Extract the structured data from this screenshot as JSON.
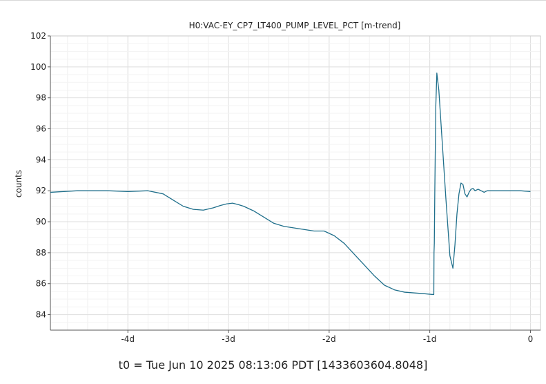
{
  "chart_data": {
    "type": "line",
    "title": "H0:VAC-EY_CP7_LT400_PUMP_LEVEL_PCT [m-trend]",
    "xlabel": "",
    "ylabel": "counts",
    "footer": "t0 = Tue Jun 10 2025 08:13:06 PDT [1433603604.8048]",
    "x_unit": "days",
    "xlim": [
      -4.77,
      0.1
    ],
    "ylim": [
      83,
      102
    ],
    "grid": true,
    "x_ticks": [
      {
        "value": -4,
        "label": "-4d"
      },
      {
        "value": -3,
        "label": "-3d"
      },
      {
        "value": -2,
        "label": "-2d"
      },
      {
        "value": -1,
        "label": "-1d"
      },
      {
        "value": 0,
        "label": "0"
      }
    ],
    "y_ticks": [
      84,
      86,
      88,
      90,
      92,
      94,
      96,
      98,
      100,
      102
    ],
    "series": [
      {
        "name": "",
        "color": "#1f6f8b",
        "x": [
          -4.77,
          -4.5,
          -4.2,
          -4.0,
          -3.8,
          -3.65,
          -3.55,
          -3.45,
          -3.35,
          -3.25,
          -3.15,
          -3.08,
          -3.02,
          -2.96,
          -2.9,
          -2.85,
          -2.75,
          -2.65,
          -2.55,
          -2.45,
          -2.35,
          -2.25,
          -2.15,
          -2.05,
          -1.95,
          -1.85,
          -1.75,
          -1.65,
          -1.55,
          -1.45,
          -1.35,
          -1.25,
          -1.15,
          -1.05,
          -0.97,
          -0.96,
          -0.958,
          -0.955,
          -0.95,
          -0.94,
          -0.93,
          -0.91,
          -0.88,
          -0.84,
          -0.8,
          -0.77,
          -0.75,
          -0.73,
          -0.71,
          -0.69,
          -0.67,
          -0.65,
          -0.63,
          -0.61,
          -0.59,
          -0.57,
          -0.55,
          -0.52,
          -0.49,
          -0.46,
          -0.43,
          -0.4,
          -0.35,
          -0.3,
          -0.2,
          -0.1,
          0.0
        ],
        "y": [
          91.9,
          92.0,
          92.0,
          91.95,
          92.0,
          91.8,
          91.4,
          91.0,
          90.8,
          90.75,
          90.9,
          91.05,
          91.15,
          91.2,
          91.1,
          91.0,
          90.7,
          90.3,
          89.9,
          89.7,
          89.6,
          89.5,
          89.4,
          89.4,
          89.1,
          88.6,
          87.9,
          87.2,
          86.5,
          85.9,
          85.6,
          85.45,
          85.4,
          85.35,
          85.3,
          85.3,
          88.0,
          88.6,
          92.0,
          97.5,
          99.6,
          98.5,
          95.5,
          91.5,
          87.8,
          87.0,
          88.5,
          90.5,
          91.8,
          92.5,
          92.4,
          91.8,
          91.6,
          91.9,
          92.1,
          92.15,
          92.0,
          92.1,
          92.0,
          91.9,
          92.0,
          92.0,
          92.0,
          92.0,
          92.0,
          92.0,
          91.95
        ]
      }
    ]
  }
}
